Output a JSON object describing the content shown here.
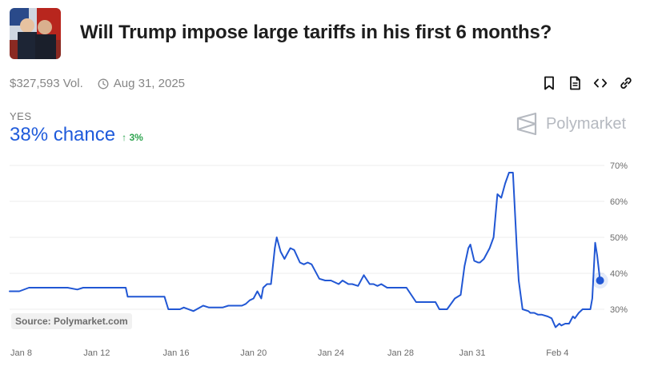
{
  "market": {
    "title": "Will Trump impose large tariffs in his first 6 months?",
    "volume": "$327,593 Vol.",
    "end_date": "Aug 31, 2025"
  },
  "outcome": {
    "label": "YES",
    "chance": "38% chance",
    "delta": "3%",
    "delta_direction": "up"
  },
  "brand": {
    "name": "Polymarket"
  },
  "source": "Source: Polymarket.com",
  "actions": [
    "bookmark-icon",
    "document-icon",
    "embed-icon",
    "link-icon"
  ],
  "colors": {
    "line": "#2157d4",
    "accent": "#1f5bdb",
    "positive": "#2ea44f",
    "grid": "#ededed"
  },
  "chart_data": {
    "type": "line",
    "title": "",
    "xlabel": "",
    "ylabel": "",
    "ylim": [
      20,
      72
    ],
    "y_ticks": [
      30,
      40,
      50,
      60,
      70
    ],
    "y_tick_labels": [
      "30%",
      "40%",
      "50%",
      "60%",
      "70%"
    ],
    "x_ticks": [
      "Jan 8",
      "Jan 12",
      "Jan 16",
      "Jan 20",
      "Jan 24",
      "Jan 28",
      "Jan 31",
      "Feb 4"
    ],
    "x_tick_days": [
      7.6,
      11.5,
      15.6,
      19.6,
      23.6,
      27.2,
      30.9,
      35.3
    ],
    "series": [
      {
        "name": "YES",
        "x": [
          7,
          7.5,
          8,
          9,
          10,
          10.5,
          10.8,
          11,
          12,
          13,
          13.1,
          14,
          15,
          15.2,
          15.5,
          15.8,
          16,
          16.5,
          17,
          17.3,
          17.6,
          18,
          18.3,
          18.7,
          19,
          19.2,
          19.4,
          19.6,
          19.8,
          20,
          20.1,
          20.3,
          20.5,
          20.7,
          20.8,
          21,
          21.2,
          21.4,
          21.5,
          21.7,
          22,
          22.2,
          22.4,
          22.6,
          23,
          23.3,
          23.6,
          24,
          24.2,
          24.5,
          24.7,
          25,
          25.3,
          25.6,
          25.8,
          26,
          26.2,
          26.5,
          27,
          27.5,
          28,
          28.2,
          28.5,
          29,
          29.2,
          29.6,
          30,
          30.3,
          30.5,
          30.7,
          30.8,
          31,
          31.2,
          31.3,
          31.5,
          31.8,
          32,
          32.2,
          32.4,
          32.6,
          32.8,
          32.9,
          33,
          33.2,
          33.3,
          33.5,
          33.8,
          33.9,
          34.1,
          34.3,
          34.5,
          34.8,
          35,
          35.2,
          35.4,
          35.5,
          35.7,
          35.9,
          36.1,
          36.2,
          36.4,
          36.6,
          36.8,
          37,
          37.1,
          37.25,
          37.35,
          37.5
        ],
        "values": [
          35,
          35,
          36,
          36,
          36,
          35.5,
          36,
          36,
          36,
          36,
          33.5,
          33.5,
          33.5,
          30,
          30,
          30,
          30.5,
          29.5,
          31,
          30.5,
          30.5,
          30.5,
          31,
          31,
          31,
          31.5,
          32.5,
          33,
          35,
          33,
          36,
          37,
          37,
          47,
          50,
          46,
          44,
          46,
          47,
          46.5,
          43,
          42.5,
          43,
          42.5,
          38.5,
          38,
          38,
          37,
          38,
          37,
          37,
          36.5,
          39.5,
          37,
          37,
          36.5,
          37,
          36,
          36,
          36,
          32,
          32,
          32,
          32,
          30,
          30,
          33,
          34,
          42,
          47,
          48,
          43.5,
          43,
          43,
          44,
          47,
          50,
          62,
          61,
          65,
          68,
          68,
          68,
          47,
          38,
          30,
          29.5,
          29,
          29,
          28.5,
          28.5,
          28,
          27.5,
          25,
          26,
          25.5,
          26,
          26,
          28,
          27.5,
          29,
          30,
          30,
          30,
          33,
          48.5,
          45,
          38
        ]
      }
    ],
    "last_point": {
      "x": 37.5,
      "value": 38
    }
  }
}
